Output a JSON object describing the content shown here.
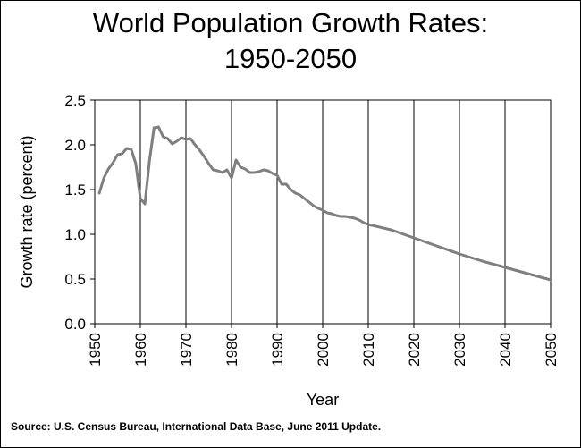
{
  "title_line1": "World Population Growth Rates:",
  "title_line2": "1950-2050",
  "source": "Source: U.S. Census Bureau, International Data Base, June 2011 Update.",
  "line_color": "#7f7f7f",
  "chart_data": {
    "type": "line",
    "title": "World Population Growth Rates: 1950-2050",
    "xlabel": "Year",
    "ylabel": "Growth rate  (percent)",
    "xlim": [
      1950,
      2050
    ],
    "ylim": [
      0.0,
      2.5
    ],
    "x_ticks": [
      "1950",
      "1960",
      "1970",
      "1980",
      "1990",
      "2000",
      "2010",
      "2020",
      "2030",
      "2040",
      "2050"
    ],
    "y_ticks": [
      "0.0",
      "0.5",
      "1.0",
      "1.5",
      "2.0",
      "2.5"
    ],
    "grid": "vertical",
    "legend": "none",
    "series": [
      {
        "x": [
          1951,
          1952,
          1953,
          1954,
          1955,
          1956,
          1957,
          1958,
          1959,
          1960,
          1961,
          1962,
          1963,
          1964,
          1965,
          1966,
          1967,
          1968,
          1969,
          1970,
          1971,
          1972,
          1973,
          1974,
          1975,
          1976,
          1977,
          1978,
          1979,
          1980,
          1981,
          1982,
          1983,
          1984,
          1985,
          1986,
          1987,
          1988,
          1989,
          1990,
          1991,
          1992,
          1993,
          1994,
          1995,
          1996,
          1997,
          1998,
          1999,
          2000,
          2001,
          2002,
          2003,
          2004,
          2005,
          2006,
          2007,
          2008,
          2009,
          2010,
          2015,
          2020,
          2025,
          2030,
          2035,
          2040,
          2045,
          2050
        ],
        "y": [
          1.46,
          1.63,
          1.73,
          1.8,
          1.89,
          1.9,
          1.96,
          1.95,
          1.79,
          1.4,
          1.34,
          1.82,
          2.19,
          2.2,
          2.09,
          2.07,
          2.01,
          2.04,
          2.08,
          2.06,
          2.07,
          2.0,
          1.94,
          1.87,
          1.79,
          1.72,
          1.71,
          1.69,
          1.72,
          1.63,
          1.83,
          1.75,
          1.73,
          1.69,
          1.69,
          1.7,
          1.72,
          1.71,
          1.68,
          1.66,
          1.56,
          1.56,
          1.5,
          1.46,
          1.44,
          1.4,
          1.36,
          1.32,
          1.29,
          1.27,
          1.24,
          1.23,
          1.21,
          1.2,
          1.2,
          1.19,
          1.18,
          1.16,
          1.13,
          1.11,
          1.05,
          0.96,
          0.87,
          0.78,
          0.7,
          0.63,
          0.56,
          0.49
        ]
      }
    ]
  }
}
